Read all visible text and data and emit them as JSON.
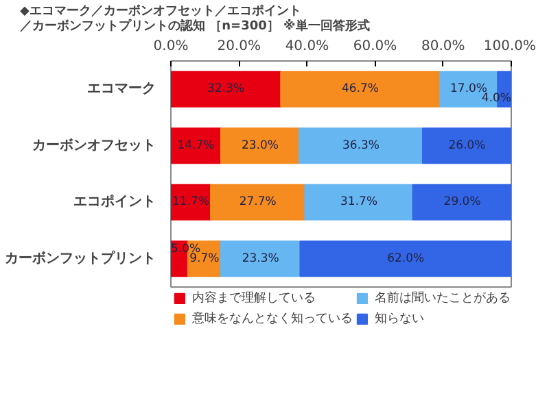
{
  "chart_data": {
    "type": "bar",
    "orientation": "horizontal",
    "stacked": true,
    "title": "◆エコマーク／カーボンオフセット／エコポイント／カーボンフットプリントの認知 ［n=300］ ※単一回答形式",
    "categories": [
      "エコマーク",
      "カーボンオフセット",
      "エコポイント",
      "カーボンフットプリント"
    ],
    "series": [
      {
        "name": "内容まで理解している",
        "color": "#e60012",
        "values": [
          32.3,
          14.7,
          11.7,
          5.0
        ]
      },
      {
        "name": "意味をなんとなく知っている",
        "color": "#f68b1f",
        "values": [
          46.7,
          23.0,
          27.7,
          9.7
        ]
      },
      {
        "name": "名前は聞いたことがある",
        "color": "#66b6f2",
        "values": [
          17.0,
          36.3,
          31.7,
          23.3
        ]
      },
      {
        "name": "知らない",
        "color": "#3366e6",
        "values": [
          4.0,
          26.0,
          29.0,
          62.0
        ]
      }
    ],
    "xlim": [
      0,
      100
    ],
    "xticks": [
      {
        "value": 0,
        "label": "0.0%"
      },
      {
        "value": 20,
        "label": "20.0%"
      },
      {
        "value": 40,
        "label": "40.0%"
      },
      {
        "value": 60,
        "label": "60.0%"
      },
      {
        "value": 80,
        "label": "80.0%"
      },
      {
        "value": 100,
        "label": "100.0%"
      }
    ],
    "value_labels": [
      [
        "32.3%",
        "14.7%",
        "11.7%",
        "5.0%"
      ],
      [
        "46.7%",
        "23.0%",
        "27.7%",
        "9.7%"
      ],
      [
        "17.0%",
        "36.3%",
        "31.7%",
        "23.3%"
      ],
      [
        "4.0%",
        "26.0%",
        "29.0%",
        "62.0%"
      ]
    ],
    "grid": false,
    "legend": "bottom"
  }
}
